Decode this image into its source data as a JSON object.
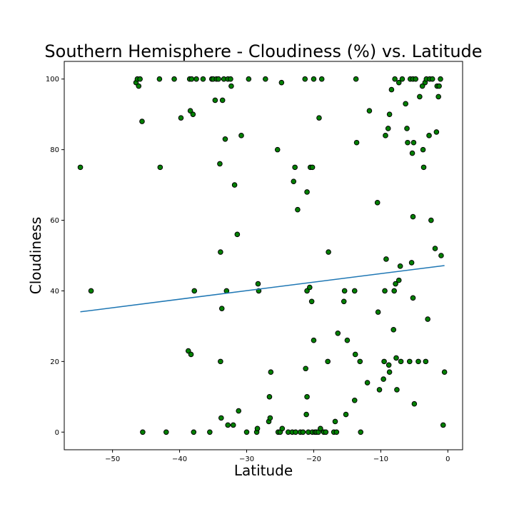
{
  "chart_data": {
    "type": "scatter",
    "title": "Southern Hemisphere - Cloudiness (%) vs. Latitude",
    "xlabel": "Latitude",
    "ylabel": "Cloudiness",
    "xlim": [
      -57.2,
      2.2
    ],
    "ylim": [
      -5,
      105
    ],
    "xticks": [
      -50,
      -40,
      -30,
      -20,
      -10,
      0
    ],
    "xtick_labels": [
      "−50",
      "−40",
      "−30",
      "−20",
      "−10",
      "0"
    ],
    "yticks": [
      0,
      20,
      40,
      60,
      80,
      100
    ],
    "ytick_labels": [
      "0",
      "20",
      "40",
      "60",
      "80",
      "100"
    ],
    "grid": false,
    "colors": {
      "marker_fill": "#008000",
      "marker_edge": "#000000",
      "regression_line": "#1f77b4"
    },
    "series": [
      {
        "points": [
          [
            -54.8,
            75
          ],
          [
            -53.2,
            40
          ],
          [
            -46.5,
            99
          ],
          [
            -46.3,
            100
          ],
          [
            -46.1,
            98
          ],
          [
            -45.9,
            100
          ],
          [
            -45.6,
            88
          ],
          [
            -45.5,
            0
          ],
          [
            -43.0,
            100
          ],
          [
            -42.9,
            75
          ],
          [
            -42.0,
            0
          ],
          [
            -40.8,
            100
          ],
          [
            -39.8,
            89
          ],
          [
            -38.7,
            23
          ],
          [
            -38.5,
            100
          ],
          [
            -38.4,
            91
          ],
          [
            -38.3,
            22
          ],
          [
            -38.2,
            100
          ],
          [
            -38.0,
            90
          ],
          [
            -37.9,
            0
          ],
          [
            -37.8,
            40
          ],
          [
            -37.5,
            100
          ],
          [
            -36.5,
            100
          ],
          [
            -35.5,
            0
          ],
          [
            -35.2,
            100
          ],
          [
            -35.0,
            100
          ],
          [
            -34.7,
            94
          ],
          [
            -34.5,
            100
          ],
          [
            -34.2,
            100
          ],
          [
            -34.0,
            76
          ],
          [
            -33.9,
            51
          ],
          [
            -33.9,
            20
          ],
          [
            -33.8,
            4
          ],
          [
            -33.7,
            35
          ],
          [
            -33.6,
            94
          ],
          [
            -33.4,
            100
          ],
          [
            -33.2,
            83
          ],
          [
            -33.0,
            40
          ],
          [
            -32.8,
            100
          ],
          [
            -32.8,
            2
          ],
          [
            -32.4,
            100
          ],
          [
            -32.3,
            98
          ],
          [
            -32.0,
            2
          ],
          [
            -31.8,
            70
          ],
          [
            -31.4,
            56
          ],
          [
            -31.2,
            6
          ],
          [
            -30.8,
            84
          ],
          [
            -30.0,
            0
          ],
          [
            -29.7,
            100
          ],
          [
            -28.5,
            0
          ],
          [
            -28.4,
            1
          ],
          [
            -28.3,
            42
          ],
          [
            -28.2,
            40
          ],
          [
            -27.2,
            100
          ],
          [
            -26.7,
            3
          ],
          [
            -26.6,
            10
          ],
          [
            -26.5,
            4
          ],
          [
            -26.4,
            17
          ],
          [
            -25.4,
            80
          ],
          [
            -25.3,
            0
          ],
          [
            -25.0,
            0
          ],
          [
            -24.8,
            99
          ],
          [
            -24.7,
            1
          ],
          [
            -23.8,
            0
          ],
          [
            -23.2,
            0
          ],
          [
            -23.0,
            71
          ],
          [
            -22.8,
            75
          ],
          [
            -22.7,
            0
          ],
          [
            -22.4,
            63
          ],
          [
            -22.0,
            0
          ],
          [
            -21.6,
            0
          ],
          [
            -21.3,
            100
          ],
          [
            -21.2,
            18
          ],
          [
            -21.1,
            5
          ],
          [
            -21.0,
            10
          ],
          [
            -21.0,
            68
          ],
          [
            -21.0,
            40
          ],
          [
            -20.8,
            0
          ],
          [
            -20.6,
            41
          ],
          [
            -20.5,
            75
          ],
          [
            -20.3,
            37
          ],
          [
            -20.2,
            75
          ],
          [
            -20.2,
            0
          ],
          [
            -20.0,
            100
          ],
          [
            -20.0,
            26
          ],
          [
            -19.8,
            0
          ],
          [
            -19.6,
            0
          ],
          [
            -19.3,
            0
          ],
          [
            -19.2,
            89
          ],
          [
            -19.0,
            1
          ],
          [
            -18.8,
            100
          ],
          [
            -18.5,
            0
          ],
          [
            -18.2,
            0
          ],
          [
            -17.9,
            20
          ],
          [
            -17.8,
            51
          ],
          [
            -17.0,
            0
          ],
          [
            -16.8,
            3
          ],
          [
            -16.6,
            0
          ],
          [
            -16.4,
            28
          ],
          [
            -15.5,
            37
          ],
          [
            -15.4,
            40
          ],
          [
            -15.2,
            5
          ],
          [
            -15.0,
            26
          ],
          [
            -13.9,
            40
          ],
          [
            -13.9,
            9
          ],
          [
            -13.8,
            22
          ],
          [
            -13.7,
            100
          ],
          [
            -13.6,
            82
          ],
          [
            -13.1,
            20
          ],
          [
            -13.0,
            0
          ],
          [
            -12.0,
            14
          ],
          [
            -11.7,
            91
          ],
          [
            -10.5,
            65
          ],
          [
            -10.4,
            34
          ],
          [
            -10.2,
            12
          ],
          [
            -9.6,
            15
          ],
          [
            -9.5,
            20
          ],
          [
            -9.4,
            40
          ],
          [
            -9.3,
            84
          ],
          [
            -9.2,
            49
          ],
          [
            -8.9,
            86
          ],
          [
            -8.8,
            19
          ],
          [
            -8.7,
            17
          ],
          [
            -8.7,
            90
          ],
          [
            -8.4,
            97
          ],
          [
            -8.1,
            29
          ],
          [
            -8.0,
            40
          ],
          [
            -7.9,
            100
          ],
          [
            -7.8,
            42
          ],
          [
            -7.7,
            21
          ],
          [
            -7.6,
            12
          ],
          [
            -7.3,
            99
          ],
          [
            -7.3,
            43
          ],
          [
            -7.1,
            47
          ],
          [
            -7.0,
            20
          ],
          [
            -6.8,
            100
          ],
          [
            -6.3,
            93
          ],
          [
            -6.1,
            86
          ],
          [
            -6.0,
            82
          ],
          [
            -5.7,
            20
          ],
          [
            -5.6,
            100
          ],
          [
            -5.4,
            48
          ],
          [
            -5.3,
            79
          ],
          [
            -5.2,
            100
          ],
          [
            -5.2,
            61
          ],
          [
            -5.2,
            38
          ],
          [
            -5.1,
            82
          ],
          [
            -5.0,
            8
          ],
          [
            -4.8,
            100
          ],
          [
            -4.4,
            20
          ],
          [
            -4.2,
            95
          ],
          [
            -3.8,
            98
          ],
          [
            -3.7,
            80
          ],
          [
            -3.6,
            75
          ],
          [
            -3.4,
            99
          ],
          [
            -3.3,
            20
          ],
          [
            -3.2,
            100
          ],
          [
            -3.0,
            32
          ],
          [
            -2.8,
            84
          ],
          [
            -2.7,
            100
          ],
          [
            -2.5,
            60
          ],
          [
            -2.3,
            100
          ],
          [
            -1.9,
            52
          ],
          [
            -1.7,
            85
          ],
          [
            -1.6,
            98
          ],
          [
            -1.4,
            95
          ],
          [
            -1.3,
            98
          ],
          [
            -1.1,
            100
          ],
          [
            -1.0,
            50
          ],
          [
            -0.7,
            2
          ],
          [
            -0.5,
            17
          ]
        ]
      }
    ],
    "regression": {
      "x_start": -54.8,
      "x_end": -0.5,
      "slope": 0.2415,
      "intercept": 47.3
    }
  }
}
